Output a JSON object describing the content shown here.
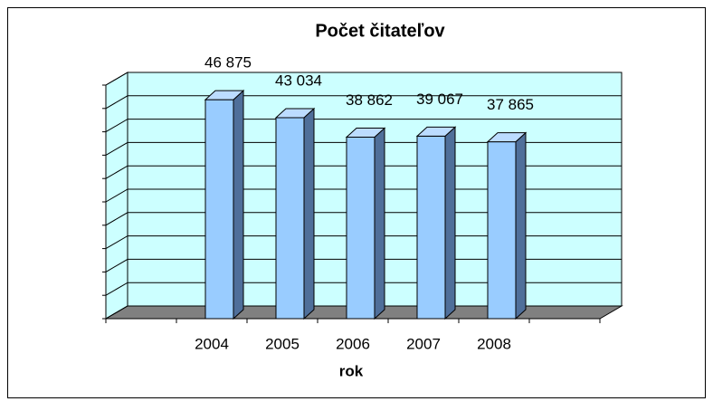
{
  "chart_data": {
    "type": "bar3d",
    "title": "Počet čitateľov",
    "xlabel": "rok",
    "categories": [
      null,
      "2004",
      "2005",
      "2006",
      "2007",
      "2008",
      null
    ],
    "values": [
      null,
      46875,
      43034,
      38862,
      39067,
      37865,
      null
    ],
    "value_labels": [
      null,
      "46 875",
      "43 034",
      "38 862",
      "39 067",
      "37 865",
      null
    ],
    "color": "#99ccff",
    "wall_color": "#ccffff",
    "floor_color": "#808080",
    "ylim": [
      0,
      50000
    ],
    "yticks": [
      0,
      5000,
      10000,
      15000,
      20000,
      25000,
      30000,
      35000,
      40000,
      45000,
      50000
    ],
    "grid": true
  }
}
